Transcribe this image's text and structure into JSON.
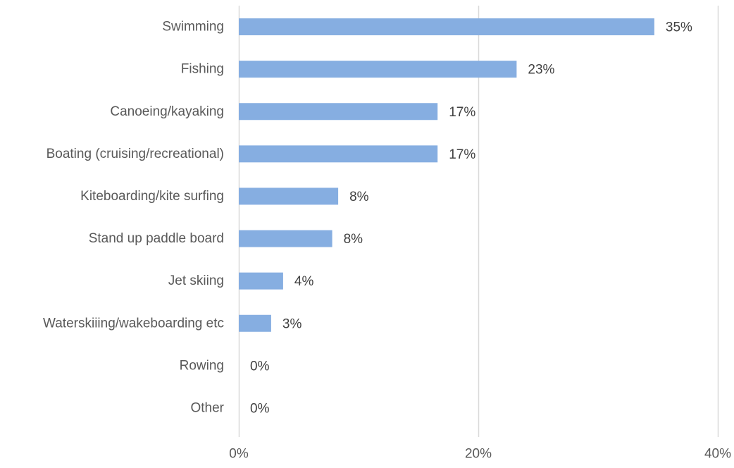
{
  "chart_data": {
    "type": "bar",
    "orientation": "horizontal",
    "title": "",
    "xlabel": "",
    "ylabel": "",
    "categories": [
      "Swimming",
      "Fishing",
      "Canoeing/kayaking",
      "Boating (cruising/recreational)",
      "Kiteboarding/kite surfing",
      "Stand up paddle board",
      "Jet skiing",
      "Waterskiiing/wakeboarding etc",
      "Rowing",
      "Other"
    ],
    "values": [
      35,
      23,
      17,
      17,
      8,
      8,
      4,
      3,
      0,
      0
    ],
    "data_labels": [
      "35%",
      "23%",
      "17%",
      "17%",
      "8%",
      "8%",
      "4%",
      "3%",
      "0%",
      "0%"
    ],
    "value_ratios": [
      0.347,
      0.232,
      0.166,
      0.166,
      0.083,
      0.078,
      0.037,
      0.027,
      0,
      0
    ],
    "xlim": [
      0,
      40
    ],
    "x_ticks": [
      0,
      20,
      40
    ],
    "x_tick_labels": [
      "0%",
      "20%",
      "40%"
    ],
    "grid": "vertical",
    "legend": "none",
    "colors": {
      "bar": "#86AEE1",
      "grid": "#D9D9D9",
      "axis_text": "#595959",
      "data_label_text": "#404040"
    }
  }
}
